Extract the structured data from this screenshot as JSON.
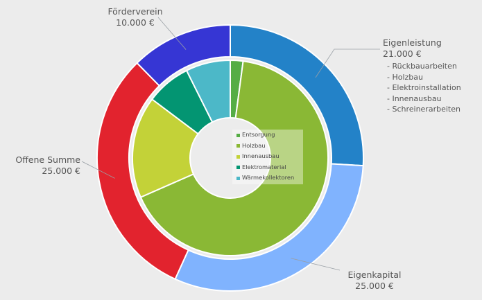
{
  "chart_data": {
    "type": "pie",
    "outer_ring": [
      {
        "name": "Eigenleistung",
        "label": "Eigenleistung",
        "value_label": "21.000 €",
        "value": 21000,
        "color": "#2382c8",
        "details": [
          "- Rückbauarbeiten",
          "- Holzbau",
          "- Elektroinstallation",
          "- Innenausbau",
          "- Schreinerarbeiten"
        ]
      },
      {
        "name": "Eigenkapital",
        "label": "Eigenkapital",
        "value_label": "25.000 €",
        "value": 25000,
        "color": "#80b3fe"
      },
      {
        "name": "Offene Summe",
        "label": "Offene Summe",
        "value_label": "25.000 €",
        "value": 25000,
        "color": "#e2232e"
      },
      {
        "name": "Förderverein",
        "label": "Förderverein",
        "value_label": "10.000 €",
        "value": 10000,
        "color": "#3636d4"
      }
    ],
    "inner_ring": [
      {
        "name": "Entsorgung",
        "value": 2,
        "color": "#55ad45"
      },
      {
        "name": "Holzbau",
        "value": 63,
        "color": "#8ab835"
      },
      {
        "name": "Innenausbau",
        "value": 16,
        "color": "#c3d238"
      },
      {
        "name": "Elektromaterial",
        "value": 7,
        "color": "#039572"
      },
      {
        "name": "Wärmekollektoren",
        "value": 7,
        "color": "#4cb8c8"
      }
    ]
  }
}
